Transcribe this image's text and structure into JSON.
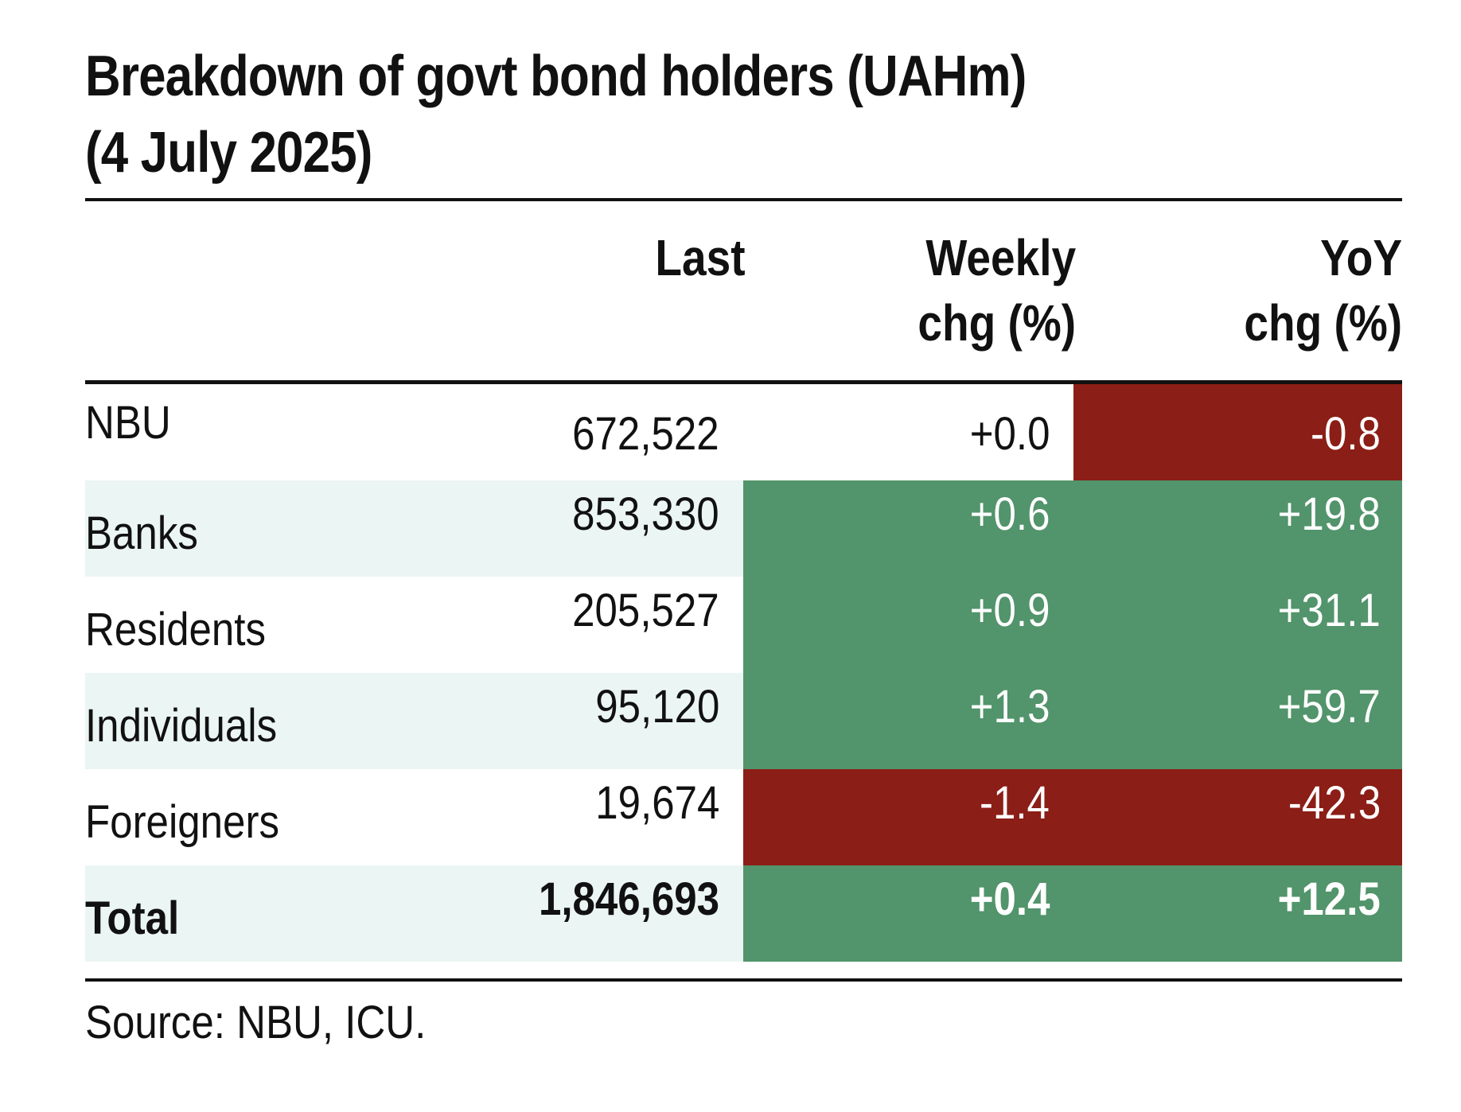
{
  "title_line1": "Breakdown of govt bond holders (UAHm)",
  "title_line2": "(4 July 2025)",
  "headers": {
    "last": "Last",
    "weekly_l1": "Weekly",
    "weekly_l2": "chg (%)",
    "yoy_l1": "YoY",
    "yoy_l2": "chg (%)"
  },
  "colors": {
    "positive": "#52946b",
    "negative": "#8b1e16",
    "stripe": "#ebf5f3"
  },
  "rows": [
    {
      "label": "NBU",
      "last": "672,522",
      "weekly": "+0.0",
      "yoy": "-0.8"
    },
    {
      "label": "Banks",
      "last": "853,330",
      "weekly": "+0.6",
      "yoy": "+19.8"
    },
    {
      "label": "Residents",
      "last": "205,527",
      "weekly": "+0.9",
      "yoy": "+31.1"
    },
    {
      "label": "Individuals",
      "last": "95,120",
      "weekly": "+1.3",
      "yoy": "+59.7"
    },
    {
      "label": "Foreigners",
      "last": "19,674",
      "weekly": "-1.4",
      "yoy": "-42.3"
    },
    {
      "label": "Total",
      "last": "1,846,693",
      "weekly": "+0.4",
      "yoy": "+12.5"
    }
  ],
  "source": "Source: NBU, ICU."
}
